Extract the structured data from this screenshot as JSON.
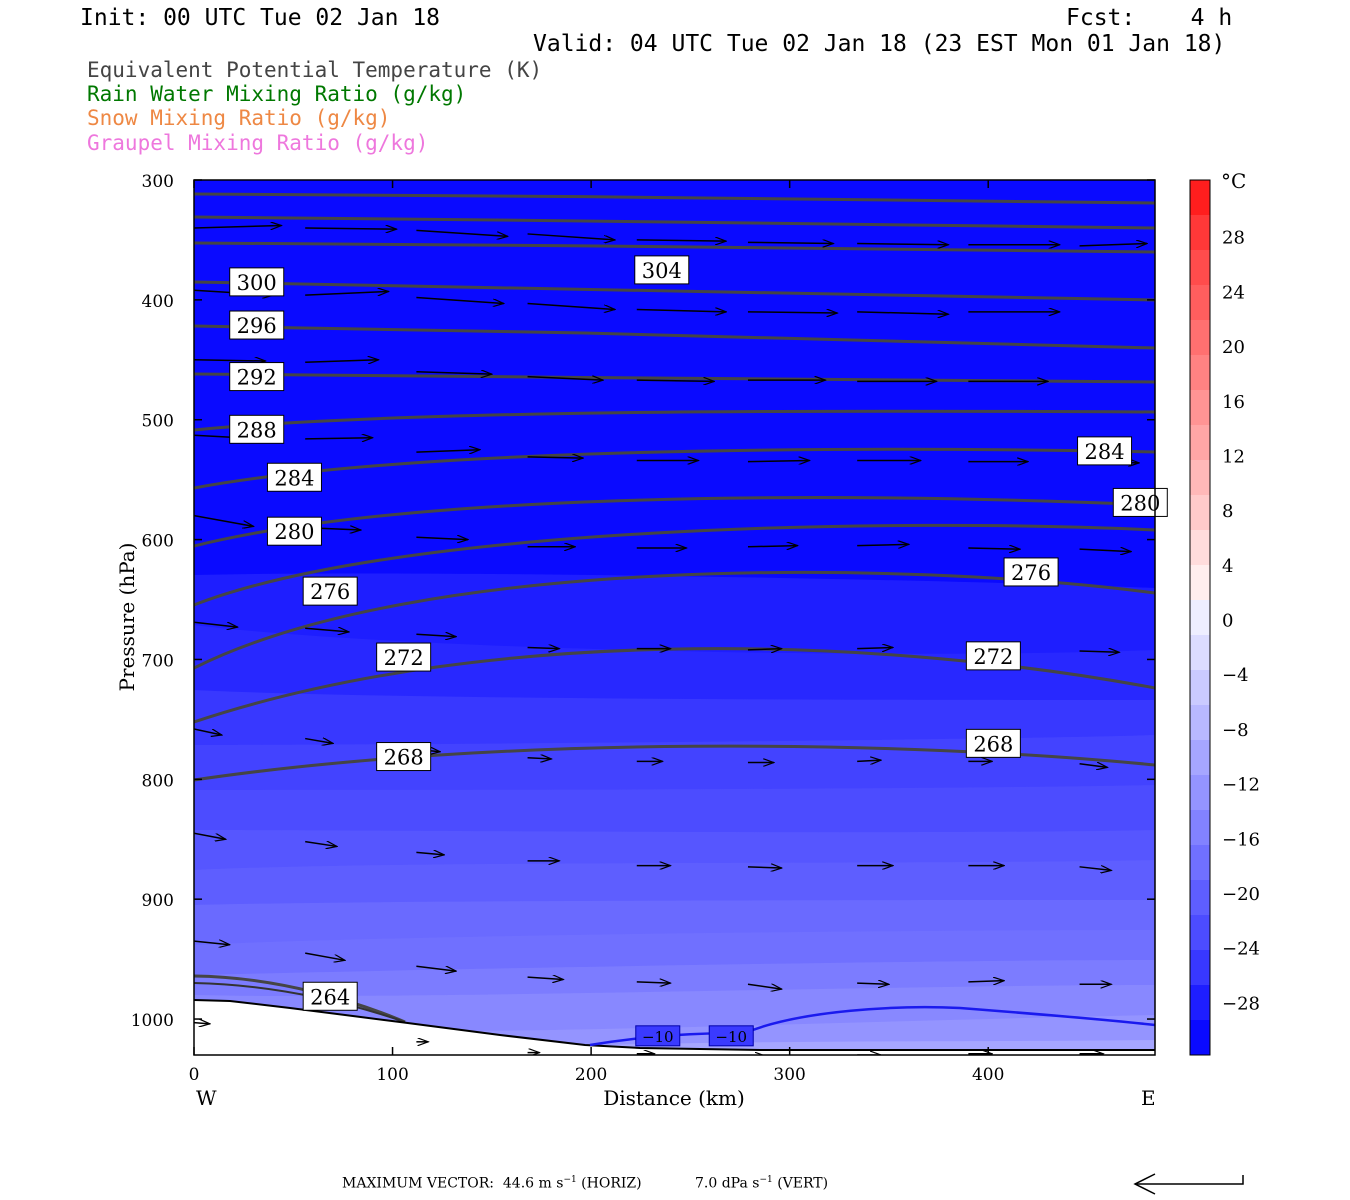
{
  "header": {
    "init": "Init: 00 UTC Tue 02 Jan 18",
    "fcst": "Fcst:    4 h",
    "valid": "Valid: 04 UTC Tue 02 Jan 18 (23 EST Mon 01 Jan 18)"
  },
  "fields": [
    {
      "label": "Equivalent Potential Temperature (K)",
      "color": "#444444"
    },
    {
      "label": "Rain Water Mixing Ratio (g/kg)",
      "color": "#007800"
    },
    {
      "label": "Snow Mixing Ratio (g/kg)",
      "color": "#ee8844"
    },
    {
      "label": "Graupel Mixing Ratio (g/kg)",
      "color": "#ee77dd"
    }
  ],
  "chart_data": {
    "type": "contour",
    "xlabel": "Distance (km)",
    "ylabel": "Pressure (hPa)",
    "xlim": [
      0,
      484
    ],
    "ylim": [
      1030,
      300
    ],
    "x_ticks": [
      0,
      100,
      200,
      300,
      400
    ],
    "y_ticks": [
      300,
      400,
      500,
      600,
      700,
      800,
      900,
      1000
    ],
    "x_left_label": "W",
    "x_right_label": "E",
    "colorbar": {
      "unit": "°C",
      "ticks": [
        28,
        24,
        20,
        16,
        12,
        8,
        4,
        0,
        -4,
        -8,
        -12,
        -16,
        -20,
        -24,
        -28
      ],
      "tick_labels": [
        "28",
        "24",
        "20",
        "16",
        "12",
        "8",
        "4",
        "0",
        "−4",
        "−8",
        "−12",
        "−16",
        "−20",
        "−24",
        "−28"
      ],
      "range": [
        -32,
        32
      ],
      "colors_warm": [
        "#ff1e1e",
        "#ff3838",
        "#ff4c4c",
        "#ff5e5e",
        "#ff7070",
        "#ff8282",
        "#ff9494",
        "#ffa6a6",
        "#ffb8b8",
        "#ffcaca",
        "#ffdcdc",
        "#ffeeee"
      ],
      "colors_cold": [
        "#eeeeff",
        "#dcdcff",
        "#cacaff",
        "#b8b8ff",
        "#a6a6ff",
        "#9494ff",
        "#8282ff",
        "#7070ff",
        "#5e5eff",
        "#4c4cff",
        "#3838ff",
        "#1e1eff",
        "#0a0aff"
      ]
    },
    "theta_e_labels": [
      {
        "text": "304",
        "x": 223,
        "p": 375
      },
      {
        "text": "300",
        "x": 19,
        "p": 385
      },
      {
        "text": "296",
        "x": 19,
        "p": 421
      },
      {
        "text": "292",
        "x": 19,
        "p": 464
      },
      {
        "text": "288",
        "x": 19,
        "p": 508
      },
      {
        "text": "284",
        "x": 38,
        "p": 548
      },
      {
        "text": "284",
        "x": 446,
        "p": 526
      },
      {
        "text": "280",
        "x": 38,
        "p": 593
      },
      {
        "text": "280",
        "x": 464,
        "p": 569
      },
      {
        "text": "276",
        "x": 56,
        "p": 643
      },
      {
        "text": "276",
        "x": 409,
        "p": 627
      },
      {
        "text": "272",
        "x": 93,
        "p": 698
      },
      {
        "text": "272",
        "x": 390,
        "p": 697
      },
      {
        "text": "268",
        "x": 93,
        "p": 781
      },
      {
        "text": "268",
        "x": 390,
        "p": 770
      },
      {
        "text": "264",
        "x": 56,
        "p": 981
      }
    ],
    "temperature_labels": [
      {
        "text": "−10",
        "x": 223,
        "p": 1014
      },
      {
        "text": "−10",
        "x": 260,
        "p": 1014
      }
    ],
    "max_vector": {
      "label": "MAXIMUM VECTOR:",
      "horiz": "44.6",
      "horiz_unit": "m s",
      "horiz_tag": "(HORIZ)",
      "vert": "7.0",
      "vert_unit": "dPa s",
      "vert_tag": "(VERT)",
      "exponent": "−1"
    }
  }
}
